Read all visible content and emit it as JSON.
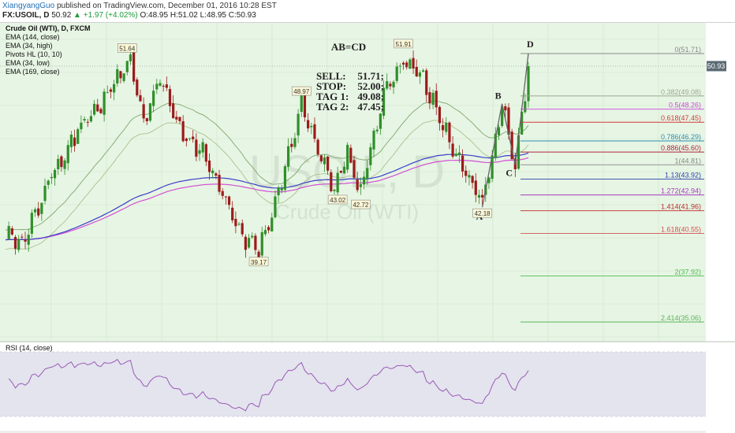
{
  "header": {
    "author": "XiangyangGuo",
    "published_text": " published on TradingView.com, December 01, 2016 10:28 EST",
    "symbol": "FX:USOIL, D",
    "price": "50.92",
    "change": "▲ +1.97 (+4.02%)",
    "ohlc": "O:48.95 H:51.02 L:48.95 C:50.93"
  },
  "legend": [
    "Crude Oil (WTI), D, FXCM",
    "EMA (144, close)",
    "EMA (34, high)",
    "Pivots HL (10, 10)",
    "EMA (34, low)",
    "EMA (169, close)"
  ],
  "watermark": {
    "symbol": "USOIL, D",
    "name": "Crude Oil (WTI)"
  },
  "annotations": {
    "pattern_title": "AB=CD",
    "trade": [
      {
        "label": "SELL:",
        "value": "51.71;"
      },
      {
        "label": "STOP:",
        "value": "52.00;"
      },
      {
        "label": "TAG 1:",
        "value": "49.08;"
      },
      {
        "label": "TAG 2:",
        "value": "47.45;"
      }
    ],
    "points": {
      "A": "A",
      "B": "B",
      "C": "C",
      "D": "D"
    }
  },
  "last_price_label": "50.93",
  "rsi_label": "RSI (14, close)",
  "colors": {
    "chart_bg": "#e7f5e4",
    "grid": "#cfe6cb",
    "candle_up": "#2f8f2a",
    "candle_down": "#9b1b1b",
    "ema144": "#3a3fc8",
    "ema169": "#d34fd3",
    "ema34_high": "#7fa86f",
    "ema34_low": "#a9c28f",
    "rsi_line": "#9b59b6",
    "rsi_bg": "#e3e4ee"
  },
  "chart_data": {
    "type": "candlestick",
    "title": "Crude Oil (WTI), D, FXCM",
    "y_range": [
      34.2,
      53.0
    ],
    "pivot_labels": [
      {
        "text": "51.64",
        "value": 51.64,
        "kind": "high"
      },
      {
        "text": "48.97",
        "value": 48.97,
        "kind": "high"
      },
      {
        "text": "51.91",
        "value": 51.91,
        "kind": "high"
      },
      {
        "text": "39.17",
        "value": 39.17,
        "kind": "low"
      },
      {
        "text": "43.02",
        "value": 43.02,
        "kind": "low"
      },
      {
        "text": "42.72",
        "value": 42.72,
        "kind": "low"
      },
      {
        "text": "42.18",
        "value": 42.18,
        "kind": "low"
      }
    ],
    "fib_levels": [
      {
        "ratio": "0",
        "value": 51.71,
        "label": "0(51.71)",
        "color": "#888888"
      },
      {
        "ratio": "0.382",
        "value": 49.08,
        "label": "0.382(49.08)",
        "color": "#9aa88e"
      },
      {
        "ratio": "0.5",
        "value": 48.26,
        "label": "0.5(48.26)",
        "color": "#c84bd6"
      },
      {
        "ratio": "0.618",
        "value": 47.45,
        "label": "0.618(47.45)",
        "color": "#d33b3b"
      },
      {
        "ratio": "0.786",
        "value": 46.29,
        "label": "0.786(46.29)",
        "color": "#2f8db0"
      },
      {
        "ratio": "0.886",
        "value": 45.6,
        "label": "0.886(45.60)",
        "color": "#b0253a"
      },
      {
        "ratio": "1",
        "value": 44.81,
        "label": "1(44.81)",
        "color": "#888888"
      },
      {
        "ratio": "1.13",
        "value": 43.92,
        "label": "1.13(43.92)",
        "color": "#2a3fb0"
      },
      {
        "ratio": "1.272",
        "value": 42.94,
        "label": "1.272(42.94)",
        "color": "#a43bc2"
      },
      {
        "ratio": "1.414",
        "value": 41.96,
        "label": "1.414(41.96)",
        "color": "#c02a2a"
      },
      {
        "ratio": "1.618",
        "value": 40.55,
        "label": "1.618(40.55)",
        "color": "#d45050"
      },
      {
        "ratio": "2",
        "value": 37.92,
        "label": "2(37.92)",
        "color": "#4fbf4f"
      },
      {
        "ratio": "2.414",
        "value": 35.06,
        "label": "2.414(35.06)",
        "color": "#5ab55a"
      }
    ],
    "abcd": {
      "A": 42.18,
      "B": 48.6,
      "C": 44.81,
      "D": 51.71
    },
    "last_price": 50.93,
    "candle_count": 160,
    "anchors": [
      [
        0,
        40.4
      ],
      [
        6,
        40.2
      ],
      [
        14,
        44.2
      ],
      [
        22,
        46.9
      ],
      [
        30,
        48.8
      ],
      [
        38,
        51.3
      ],
      [
        42,
        47.5
      ],
      [
        47,
        50.2
      ],
      [
        53,
        47.0
      ],
      [
        60,
        45.5
      ],
      [
        66,
        43.2
      ],
      [
        72,
        40.4
      ],
      [
        77,
        39.6
      ],
      [
        82,
        42.2
      ],
      [
        87,
        46.2
      ],
      [
        90,
        48.6
      ],
      [
        95,
        45.8
      ],
      [
        100,
        43.4
      ],
      [
        104,
        45.6
      ],
      [
        108,
        43.0
      ],
      [
        112,
        46.6
      ],
      [
        116,
        49.8
      ],
      [
        121,
        51.3
      ],
      [
        127,
        50.2
      ],
      [
        132,
        47.6
      ],
      [
        138,
        45.0
      ],
      [
        142,
        43.4
      ],
      [
        145,
        42.5
      ],
      [
        149,
        46.2
      ],
      [
        151,
        48.6
      ],
      [
        155,
        44.81
      ],
      [
        159,
        51.0
      ]
    ],
    "rsi_range": [
      10,
      90
    ]
  }
}
